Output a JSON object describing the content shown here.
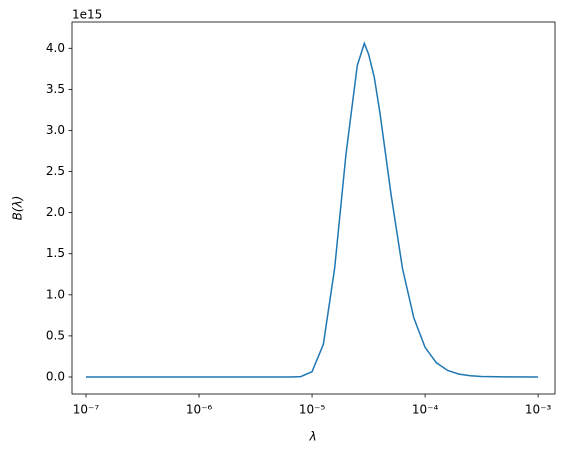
{
  "chart_data": {
    "type": "line",
    "title_offset": "1e15",
    "xlabel": "λ",
    "ylabel": "B(λ)",
    "x": [
      1e-07,
      1e-06,
      3.162e-06,
      6.31e-06,
      7.943e-06,
      1e-05,
      1.259e-05,
      1.585e-05,
      1.995e-05,
      2.512e-05,
      2.9e-05,
      3.162e-05,
      3.548e-05,
      3.981e-05,
      5.012e-05,
      6.31e-05,
      7.943e-05,
      0.0001,
      0.0001259,
      0.0001585,
      0.0001995,
      0.0002512,
      0.0003162,
      0.0005012,
      0.001
    ],
    "series": [
      {
        "color": "#1f77b4",
        "values": [
          0,
          0,
          0,
          0.0001,
          0.005,
          0.065,
          0.398,
          1.326,
          2.71,
          3.79,
          4.06,
          3.93,
          3.65,
          3.22,
          2.21,
          1.32,
          0.72,
          0.36,
          0.173,
          0.079,
          0.035,
          0.015,
          0.0064,
          0.0012,
          0.0001
        ]
      }
    ],
    "xscale": "log",
    "xlim": [
      7.52e-08,
      0.00141
    ],
    "xticks": [
      {
        "value": 1e-07,
        "label": "10⁻⁷"
      },
      {
        "value": 1e-06,
        "label": "10⁻⁶"
      },
      {
        "value": 1e-05,
        "label": "10⁻⁵"
      },
      {
        "value": 0.0001,
        "label": "10⁻⁴"
      },
      {
        "value": 0.001,
        "label": "10⁻³"
      }
    ],
    "ylim": [
      -0.207,
      4.32
    ],
    "yticks": [
      {
        "value": 0,
        "label": "0.0"
      },
      {
        "value": 0.5,
        "label": "0.5"
      },
      {
        "value": 1,
        "label": "1.0"
      },
      {
        "value": 1.5,
        "label": "1.5"
      },
      {
        "value": 2,
        "label": "2.0"
      },
      {
        "value": 2.5,
        "label": "2.5"
      },
      {
        "value": 3,
        "label": "3.0"
      },
      {
        "value": 3.5,
        "label": "3.5"
      },
      {
        "value": 4,
        "label": "4.0"
      }
    ],
    "grid": false
  }
}
